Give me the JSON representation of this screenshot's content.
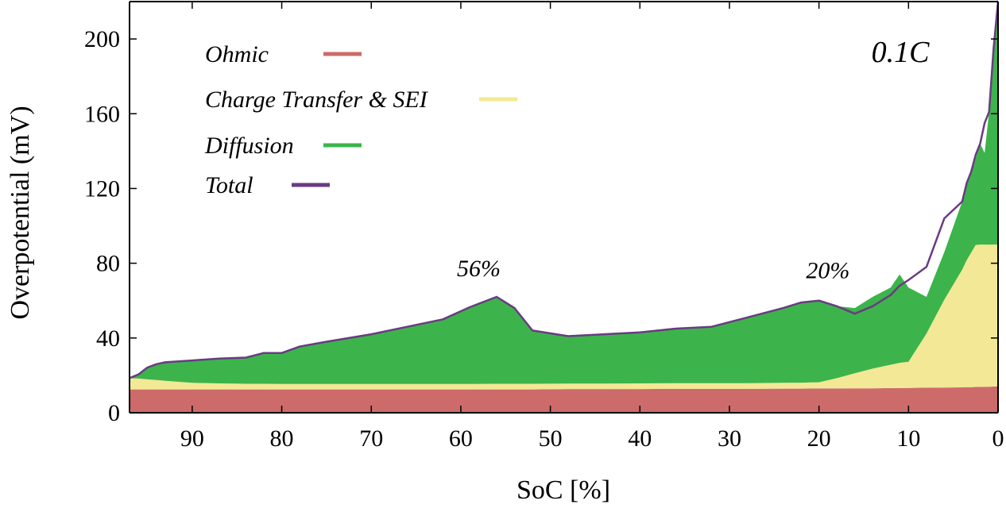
{
  "chart_data": {
    "type": "area",
    "stacked": true,
    "title": "",
    "xlabel": "SoC [%]",
    "ylabel": "Overpotential (mV)",
    "xlim": [
      97,
      0
    ],
    "ylim": [
      0,
      220
    ],
    "x_reversed": true,
    "grid": false,
    "legend_position": "top-left",
    "x_ticks": [
      90,
      80,
      70,
      60,
      50,
      40,
      30,
      20,
      10,
      0
    ],
    "y_ticks": [
      0,
      40,
      80,
      120,
      160,
      200
    ],
    "x_tick_labels": [
      "90",
      "80",
      "70",
      "60",
      "50",
      "40",
      "30",
      "20",
      "10",
      "0"
    ],
    "y_tick_labels": [
      "0",
      "40",
      "80",
      "120",
      "160",
      "200"
    ],
    "x": [
      97,
      96,
      95,
      94,
      93,
      90,
      87,
      84,
      82,
      80,
      78,
      75,
      70,
      66,
      62,
      59,
      56,
      54,
      52,
      48,
      44,
      40,
      36,
      32,
      28,
      24,
      22,
      20,
      18,
      16,
      14,
      12,
      11,
      10,
      8,
      6,
      4,
      3.5,
      3,
      2.5,
      2,
      1.5,
      1,
      0.5,
      0
    ],
    "series": [
      {
        "name": "Ohmic",
        "color": "#cd6b6b",
        "values": [
          12.5,
          12.5,
          12.5,
          12.5,
          12.5,
          12.5,
          12.5,
          12.5,
          12.5,
          12.5,
          12.5,
          12.5,
          12.5,
          12.5,
          12.5,
          12.5,
          12.5,
          12.5,
          12.5,
          12.7,
          12.7,
          12.7,
          12.8,
          12.8,
          12.8,
          12.9,
          12.9,
          13,
          13,
          13.1,
          13.1,
          13.2,
          13.2,
          13.3,
          13.4,
          13.5,
          13.6,
          13.7,
          13.7,
          13.8,
          13.8,
          13.9,
          13.9,
          14,
          14
        ]
      },
      {
        "name": "Charge Transfer & SEI",
        "color": "#f3e895",
        "values": [
          6,
          5.8,
          5.4,
          5,
          4.6,
          3.5,
          3.2,
          3,
          3,
          2.9,
          2.9,
          2.9,
          2.9,
          2.9,
          2.9,
          2.9,
          3,
          3,
          3,
          2.9,
          2.9,
          3,
          3,
          3,
          3,
          3.1,
          3.2,
          3.3,
          5.5,
          8,
          10.5,
          12.5,
          13.5,
          14,
          29,
          47,
          63,
          68,
          72,
          76,
          76.2,
          76.1,
          76,
          76,
          76
        ]
      },
      {
        "name": "Diffusion",
        "color": "#3cb44b",
        "values": [
          0,
          2.2,
          6.3,
          8.5,
          9.9,
          12,
          13.3,
          14,
          16.5,
          16.6,
          20,
          22.6,
          26.6,
          30.6,
          34.6,
          41.1,
          46.5,
          40.5,
          28.5,
          25.4,
          26.4,
          27.3,
          29.2,
          30.2,
          35.2,
          40,
          42.9,
          43.7,
          38.5,
          34.9,
          38.4,
          41.3,
          47.3,
          39.7,
          19.6,
          25.5,
          36.4,
          41.3,
          42.3,
          46.2,
          54,
          49,
          71.1,
          105,
          133
        ]
      },
      {
        "name": "Total",
        "color": "#6a3b82",
        "values": [
          18.5,
          20.5,
          24.2,
          26,
          27,
          28,
          29,
          29.5,
          32,
          32,
          35.4,
          38,
          42,
          46,
          50,
          56.5,
          62,
          56,
          44,
          41,
          42,
          43,
          45,
          46,
          51,
          56,
          59,
          60,
          57,
          53,
          57,
          63,
          68,
          71,
          78,
          104,
          113,
          123,
          129,
          138,
          144,
          155,
          161,
          195,
          223
        ]
      }
    ],
    "annotations": [
      {
        "text": "56%",
        "x": 58,
        "y": 73
      },
      {
        "text": "20%",
        "x": 19,
        "y": 72
      }
    ],
    "rate_label": "0.1C"
  }
}
